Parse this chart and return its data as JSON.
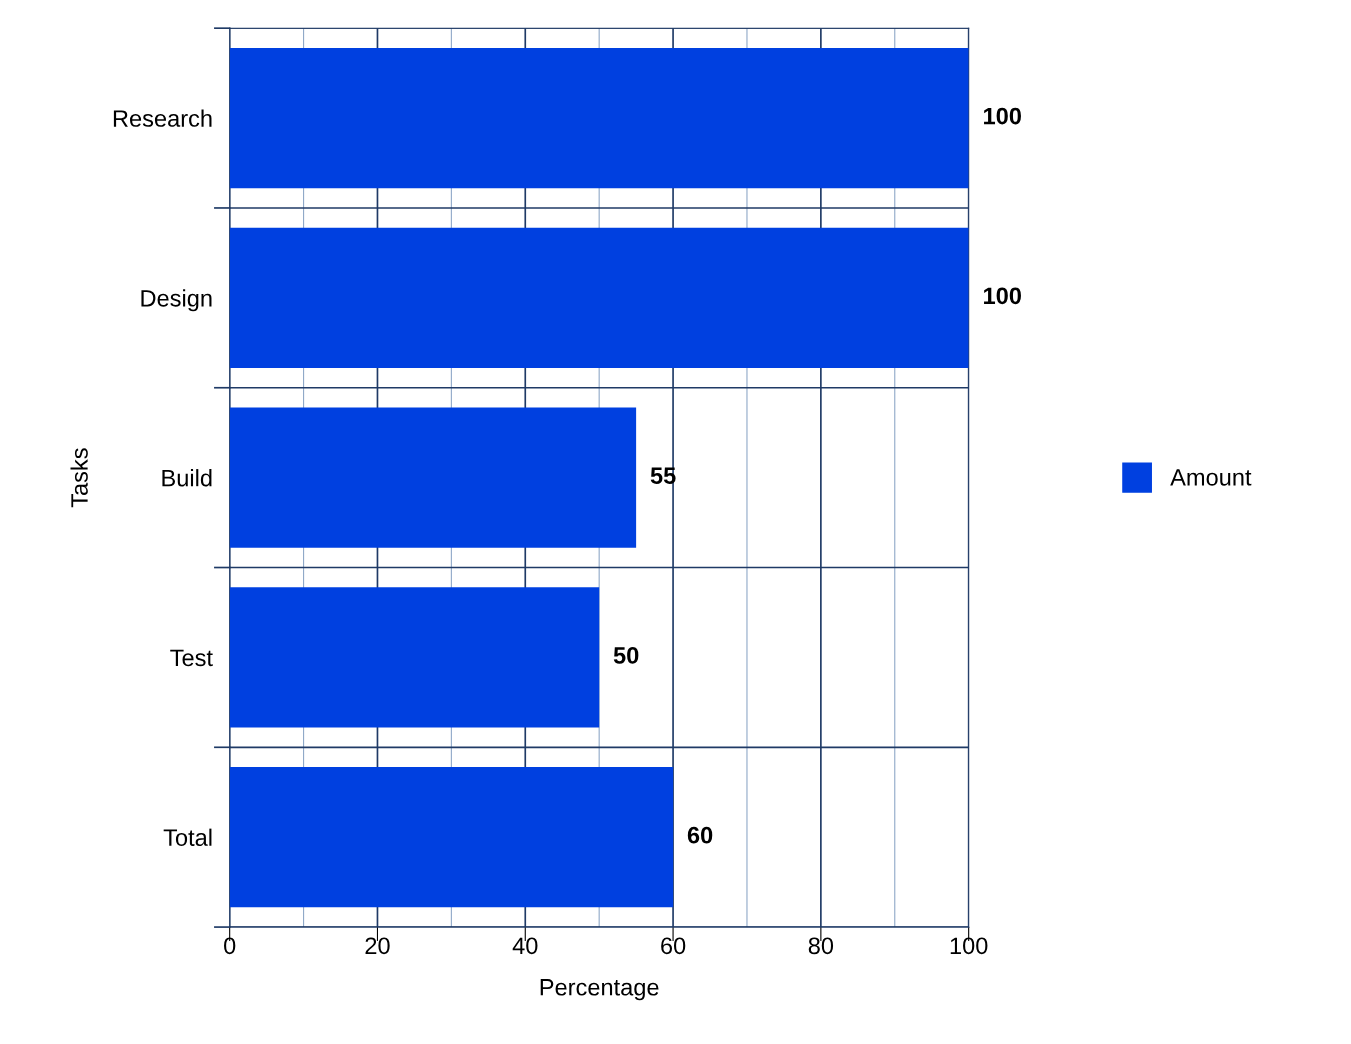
{
  "chart_data": {
    "type": "bar",
    "orientation": "horizontal",
    "xlabel": "Percentage",
    "ylabel": "Tasks",
    "categories": [
      "Research",
      "Design",
      "Build",
      "Test",
      "Total"
    ],
    "series": [
      {
        "name": "Amount",
        "color": "#0040e0",
        "values": [
          100,
          100,
          55,
          50,
          60
        ]
      }
    ],
    "xlim": [
      0,
      100
    ],
    "xticks": [
      0,
      {
        "value": 10,
        "label": null
      },
      20,
      {
        "value": 30,
        "label": null
      },
      40,
      {
        "value": 50,
        "label": null
      },
      60,
      {
        "value": 70,
        "label": null
      },
      80,
      {
        "value": 90,
        "label": null
      },
      100
    ],
    "grid": true,
    "legend": "right",
    "data_labels": true
  }
}
